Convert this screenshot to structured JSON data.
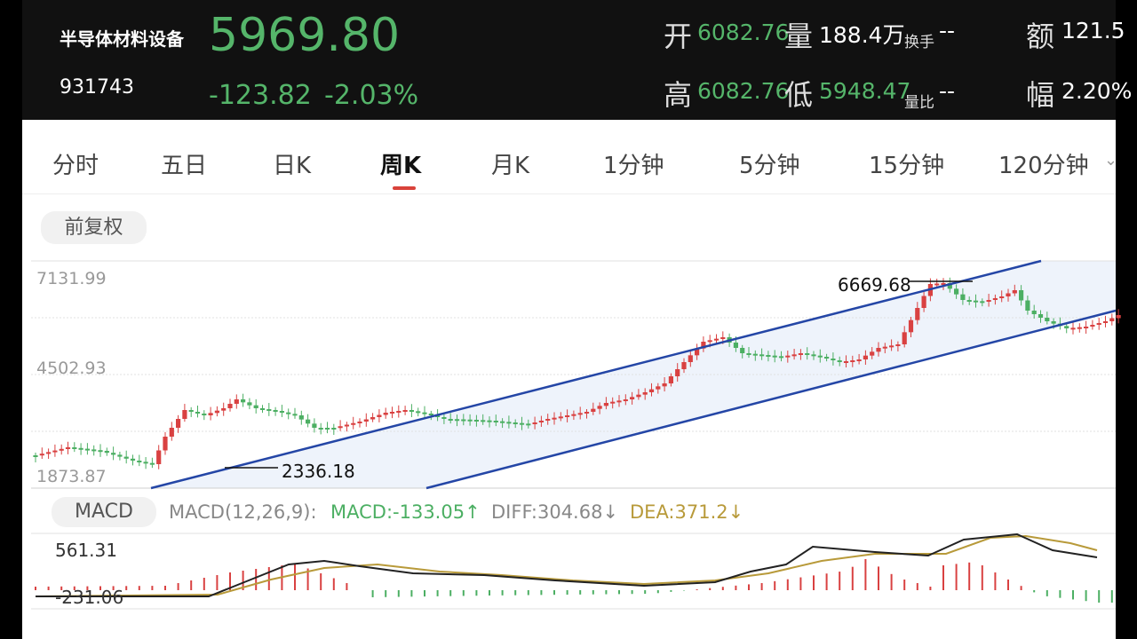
{
  "header": {
    "name": "半导体材料设备",
    "code": "931743",
    "price": "5969.80",
    "change": "-123.82",
    "change_pct": "-2.03%",
    "open_label": "开",
    "open": "6082.76",
    "vol_label": "量",
    "vol": "188.4万",
    "turnover_label": "换手",
    "turnover": "--",
    "amount_label": "额",
    "amount": "121.5",
    "high_label": "高",
    "high": "6082.76",
    "low_label": "低",
    "low": "5948.47",
    "volratio_label": "量比",
    "volratio": "--",
    "amp_label": "幅",
    "amp": "2.20%"
  },
  "tabs": [
    "分时",
    "五日",
    "日K",
    "周K",
    "月K",
    "1分钟",
    "5分钟",
    "15分钟",
    "120分钟"
  ],
  "active_tab": "周K",
  "adjust_label": "前复权",
  "kline": {
    "ylabels": [
      "7131.99",
      "4502.93",
      "1873.87"
    ],
    "high_label": "6669.68",
    "low_label": "2336.18"
  },
  "macd": {
    "button": "MACD",
    "params": "MACD(12,26,9):",
    "macd_text": "MACD:-133.05↑",
    "diff_text": "DIFF:304.68↓",
    "dea_text": "DEA:371.2↓",
    "ymax": "561.31",
    "ymin": "-231.06"
  },
  "colors": {
    "up": "#d94141",
    "down": "#4caf63",
    "channel": "#2446a6",
    "channel_fill": "#eef3fb",
    "diff": "#222222",
    "dea": "#b89a3a"
  }
}
